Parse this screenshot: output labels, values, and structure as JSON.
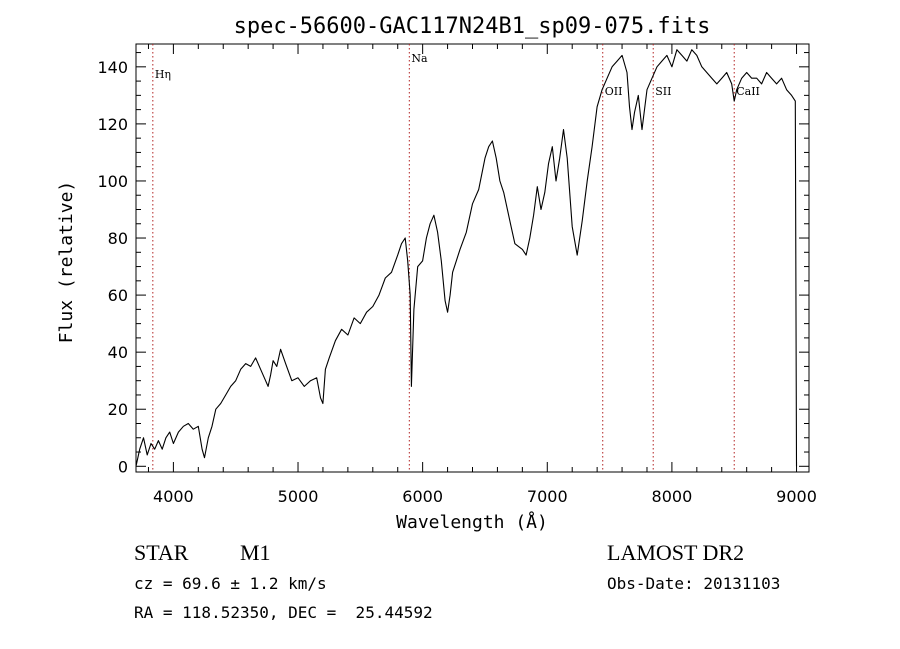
{
  "chart_data": {
    "type": "line",
    "title": "spec-56600-GAC117N24B1_sp09-075.fits",
    "xlabel": "Wavelength (Å)",
    "ylabel": "Flux (relative)",
    "xlim": [
      3700,
      9100
    ],
    "ylim": [
      -2,
      148
    ],
    "xticks": [
      4000,
      5000,
      6000,
      7000,
      8000,
      9000
    ],
    "yticks": [
      0,
      20,
      40,
      60,
      80,
      100,
      120,
      140
    ],
    "grid": false,
    "line_color": "#000000",
    "marker_color": "#b22222",
    "lines": [
      {
        "name": "Hη",
        "x": 3835
      },
      {
        "name": "Na",
        "x": 5893
      },
      {
        "name": "OII",
        "x": 7445
      },
      {
        "name": "SII",
        "x": 7850
      },
      {
        "name": "CaII",
        "x": 8500
      }
    ],
    "series": [
      {
        "x": [
          3700,
          3730,
          3760,
          3790,
          3820,
          3850,
          3880,
          3910,
          3940,
          3970,
          4000,
          4040,
          4080,
          4120,
          4160,
          4200,
          4230,
          4250,
          4280,
          4310,
          4340,
          4380,
          4420,
          4460,
          4500,
          4540,
          4580,
          4620,
          4660,
          4700,
          4740,
          4760,
          4780,
          4800,
          4830,
          4860,
          4900,
          4950,
          5000,
          5050,
          5100,
          5150,
          5180,
          5200,
          5220,
          5250,
          5300,
          5350,
          5400,
          5450,
          5500,
          5550,
          5600,
          5650,
          5700,
          5750,
          5800,
          5830,
          5860,
          5880,
          5900,
          5910,
          5930,
          5960,
          6000,
          6030,
          6060,
          6090,
          6120,
          6150,
          6180,
          6200,
          6220,
          6240,
          6270,
          6300,
          6350,
          6400,
          6450,
          6500,
          6530,
          6560,
          6590,
          6620,
          6650,
          6680,
          6710,
          6740,
          6770,
          6800,
          6830,
          6860,
          6890,
          6920,
          6950,
          6980,
          7010,
          7040,
          7070,
          7100,
          7130,
          7160,
          7200,
          7240,
          7280,
          7320,
          7360,
          7400,
          7440,
          7480,
          7520,
          7560,
          7600,
          7640,
          7660,
          7680,
          7700,
          7730,
          7760,
          7800,
          7840,
          7880,
          7920,
          7960,
          8000,
          8040,
          8080,
          8120,
          8160,
          8200,
          8240,
          8280,
          8320,
          8360,
          8400,
          8440,
          8480,
          8500,
          8520,
          8560,
          8600,
          8640,
          8680,
          8720,
          8760,
          8800,
          8840,
          8880,
          8920,
          8960,
          8990,
          9000
        ],
        "y": [
          0,
          6,
          10,
          4,
          8,
          6,
          9,
          6,
          10,
          12,
          8,
          12,
          14,
          15,
          13,
          14,
          6,
          3,
          10,
          14,
          20,
          22,
          25,
          28,
          30,
          34,
          36,
          35,
          38,
          34,
          30,
          28,
          32,
          37,
          35,
          41,
          36,
          30,
          31,
          28,
          30,
          31,
          24,
          22,
          34,
          38,
          44,
          48,
          46,
          52,
          50,
          54,
          56,
          60,
          66,
          68,
          74,
          78,
          80,
          72,
          60,
          28,
          55,
          70,
          72,
          80,
          85,
          88,
          82,
          72,
          58,
          54,
          60,
          68,
          72,
          76,
          82,
          92,
          97,
          108,
          112,
          114,
          108,
          100,
          96,
          90,
          84,
          78,
          77,
          76,
          74,
          80,
          88,
          98,
          90,
          96,
          106,
          112,
          100,
          108,
          118,
          108,
          84,
          74,
          86,
          100,
          112,
          126,
          132,
          136,
          140,
          142,
          144,
          138,
          126,
          118,
          124,
          130,
          118,
          132,
          136,
          140,
          142,
          144,
          140,
          146,
          144,
          142,
          146,
          144,
          140,
          138,
          136,
          134,
          136,
          138,
          134,
          128,
          132,
          136,
          138,
          136,
          136,
          134,
          138,
          136,
          134,
          136,
          132,
          130,
          128,
          0
        ]
      }
    ]
  },
  "info": {
    "object_class": "STAR",
    "subclass": "M1",
    "survey": "LAMOST DR2",
    "cz": "cz = 69.6 ± 1.2 km/s",
    "obs_date": "Obs-Date: 20131103",
    "coords": "RA = 118.52350, DEC =  25.44592"
  }
}
